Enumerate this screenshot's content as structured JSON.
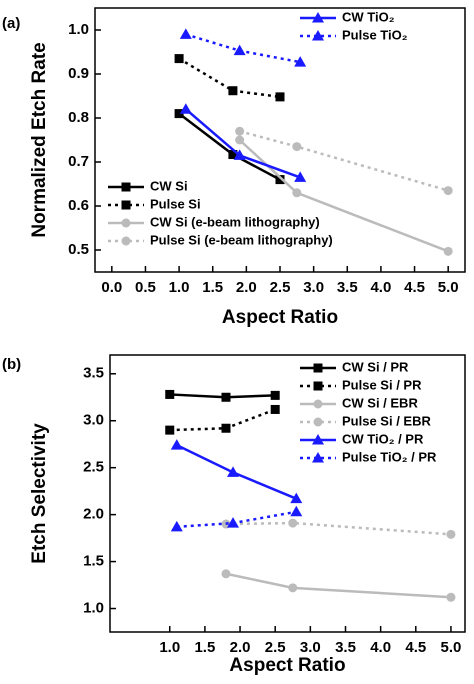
{
  "chart_data": [
    {
      "type": "line",
      "panel_label": "(a)",
      "x_label": "Aspect Ratio",
      "y_label": "Normalized Etch Rate",
      "xlim": [
        -0.25,
        5.25
      ],
      "xticks": [
        {
          "value": 0,
          "label": "0.0"
        },
        0.5,
        {
          "value": 1,
          "label": "1.0"
        },
        1.5,
        {
          "value": 2,
          "label": "2.0"
        },
        2.5,
        {
          "value": 3,
          "label": "3.0"
        },
        3.5,
        {
          "value": 4,
          "label": "4.0"
        },
        4.5,
        {
          "value": 5,
          "label": "5.0"
        }
      ],
      "ylim": [
        0.45,
        1.05
      ],
      "yticks": [
        0.5,
        0.6,
        0.7,
        0.8,
        0.9,
        {
          "value": 1,
          "label": "1.0"
        }
      ],
      "series": [
        {
          "name": "CW Si",
          "color": "#000000",
          "marker": "square",
          "linestyle": "solid",
          "x": [
            1.0,
            1.8,
            2.5
          ],
          "values": [
            0.81,
            0.717,
            0.66
          ]
        },
        {
          "name": "Pulse Si",
          "color": "#000000",
          "marker": "square",
          "linestyle": "dotted",
          "x": [
            1.0,
            1.8,
            2.5
          ],
          "values": [
            0.935,
            0.862,
            0.848
          ]
        },
        {
          "name": "CW Si (e-beam lithography)",
          "color": "#bbbbbb",
          "marker": "circle",
          "linestyle": "solid",
          "x": [
            1.9,
            2.75,
            5.0
          ],
          "values": [
            0.75,
            0.63,
            0.497
          ]
        },
        {
          "name": "Pulse Si (e-beam lithography)",
          "color": "#bbbbbb",
          "marker": "circle",
          "linestyle": "dotted",
          "x": [
            1.9,
            2.75,
            5.0
          ],
          "values": [
            0.77,
            0.735,
            0.635
          ]
        },
        {
          "name": "CW TiO₂",
          "color": "#1a1aff",
          "marker": "triangle",
          "linestyle": "solid",
          "x": [
            1.1,
            1.9,
            2.8
          ],
          "values": [
            0.82,
            0.715,
            0.665
          ]
        },
        {
          "name": "Pulse TiO₂",
          "color": "#1a1aff",
          "marker": "triangle",
          "linestyle": "dotted",
          "x": [
            1.1,
            1.9,
            2.8
          ],
          "values": [
            0.99,
            0.953,
            0.927
          ]
        }
      ]
    },
    {
      "type": "line",
      "panel_label": "(b)",
      "x_label": "Aspect Ratio",
      "y_label": "Etch Selectivity",
      "xlim": [
        0.15,
        5.2
      ],
      "xticks": [
        {
          "value": 1,
          "label": "1.0"
        },
        1.5,
        {
          "value": 2,
          "label": "2.0"
        },
        2.5,
        {
          "value": 3,
          "label": "3.0"
        },
        3.5,
        {
          "value": 4,
          "label": "4.0"
        },
        4.5,
        {
          "value": 5,
          "label": "5.0"
        }
      ],
      "ylim": [
        0.75,
        3.7
      ],
      "yticks": [
        {
          "value": 1,
          "label": "1.0"
        },
        1.5,
        {
          "value": 2,
          "label": "2.0"
        },
        2.5,
        {
          "value": 3,
          "label": "3.0"
        },
        3.5
      ],
      "series": [
        {
          "name": "CW Si / PR",
          "color": "#000000",
          "marker": "square",
          "linestyle": "solid",
          "x": [
            1.0,
            1.8,
            2.5
          ],
          "values": [
            3.28,
            3.25,
            3.27
          ]
        },
        {
          "name": "Pulse Si / PR",
          "color": "#000000",
          "marker": "square",
          "linestyle": "dotted",
          "x": [
            1.0,
            1.8,
            2.5
          ],
          "values": [
            2.9,
            2.92,
            3.12
          ]
        },
        {
          "name": "CW Si / EBR",
          "color": "#bbbbbb",
          "marker": "circle",
          "linestyle": "solid",
          "x": [
            1.8,
            2.75,
            5.0
          ],
          "values": [
            1.37,
            1.22,
            1.12
          ]
        },
        {
          "name": "Pulse Si / EBR",
          "color": "#bbbbbb",
          "marker": "circle",
          "linestyle": "dotted",
          "x": [
            1.8,
            2.75,
            5.0
          ],
          "values": [
            1.9,
            1.91,
            1.79
          ]
        },
        {
          "name": "CW TiO₂ / PR",
          "color": "#1a1aff",
          "marker": "triangle",
          "linestyle": "solid",
          "x": [
            1.1,
            1.9,
            2.8
          ],
          "values": [
            2.74,
            2.45,
            2.17
          ]
        },
        {
          "name": "Pulse TiO₂ / PR",
          "color": "#1a1aff",
          "marker": "triangle",
          "linestyle": "dotted",
          "x": [
            1.1,
            1.9,
            2.8
          ],
          "values": [
            1.87,
            1.91,
            2.03
          ]
        }
      ]
    }
  ]
}
